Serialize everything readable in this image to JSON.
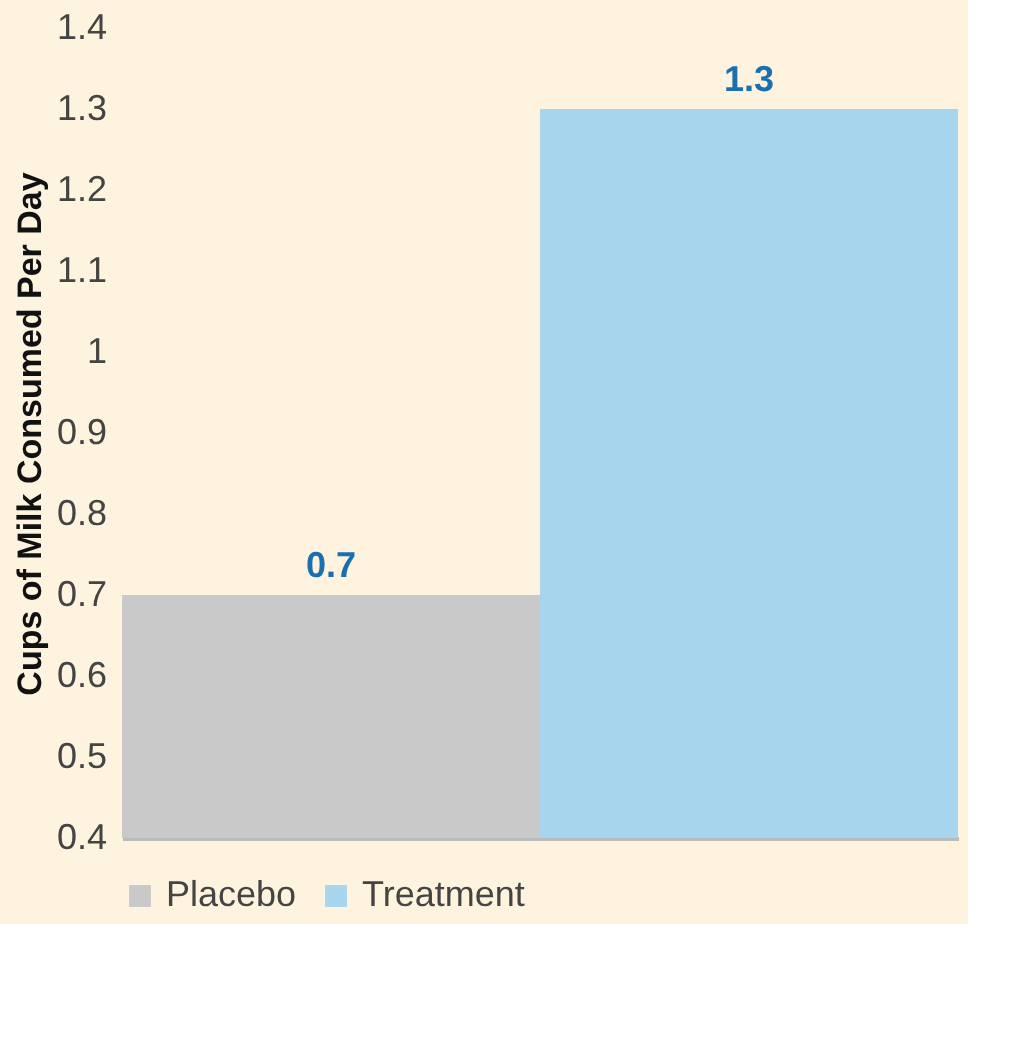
{
  "chart_data": {
    "type": "bar",
    "ylabel": "Cups of Milk Consumed Per Day",
    "categories": [
      null
    ],
    "series": [
      {
        "name": "Placebo",
        "color": "#c9c9c9",
        "values": [
          0.7
        ]
      },
      {
        "name": "Treatment",
        "color": "#a8d5ee",
        "values": [
          1.3
        ]
      }
    ],
    "ylim": [
      0.4,
      1.4
    ],
    "yticks": [
      0.4,
      0.5,
      0.6,
      0.7,
      0.8,
      0.9,
      1,
      1.1,
      1.2,
      1.3,
      1.4
    ],
    "data_labels": true,
    "grid": false,
    "legend": "bottom"
  }
}
